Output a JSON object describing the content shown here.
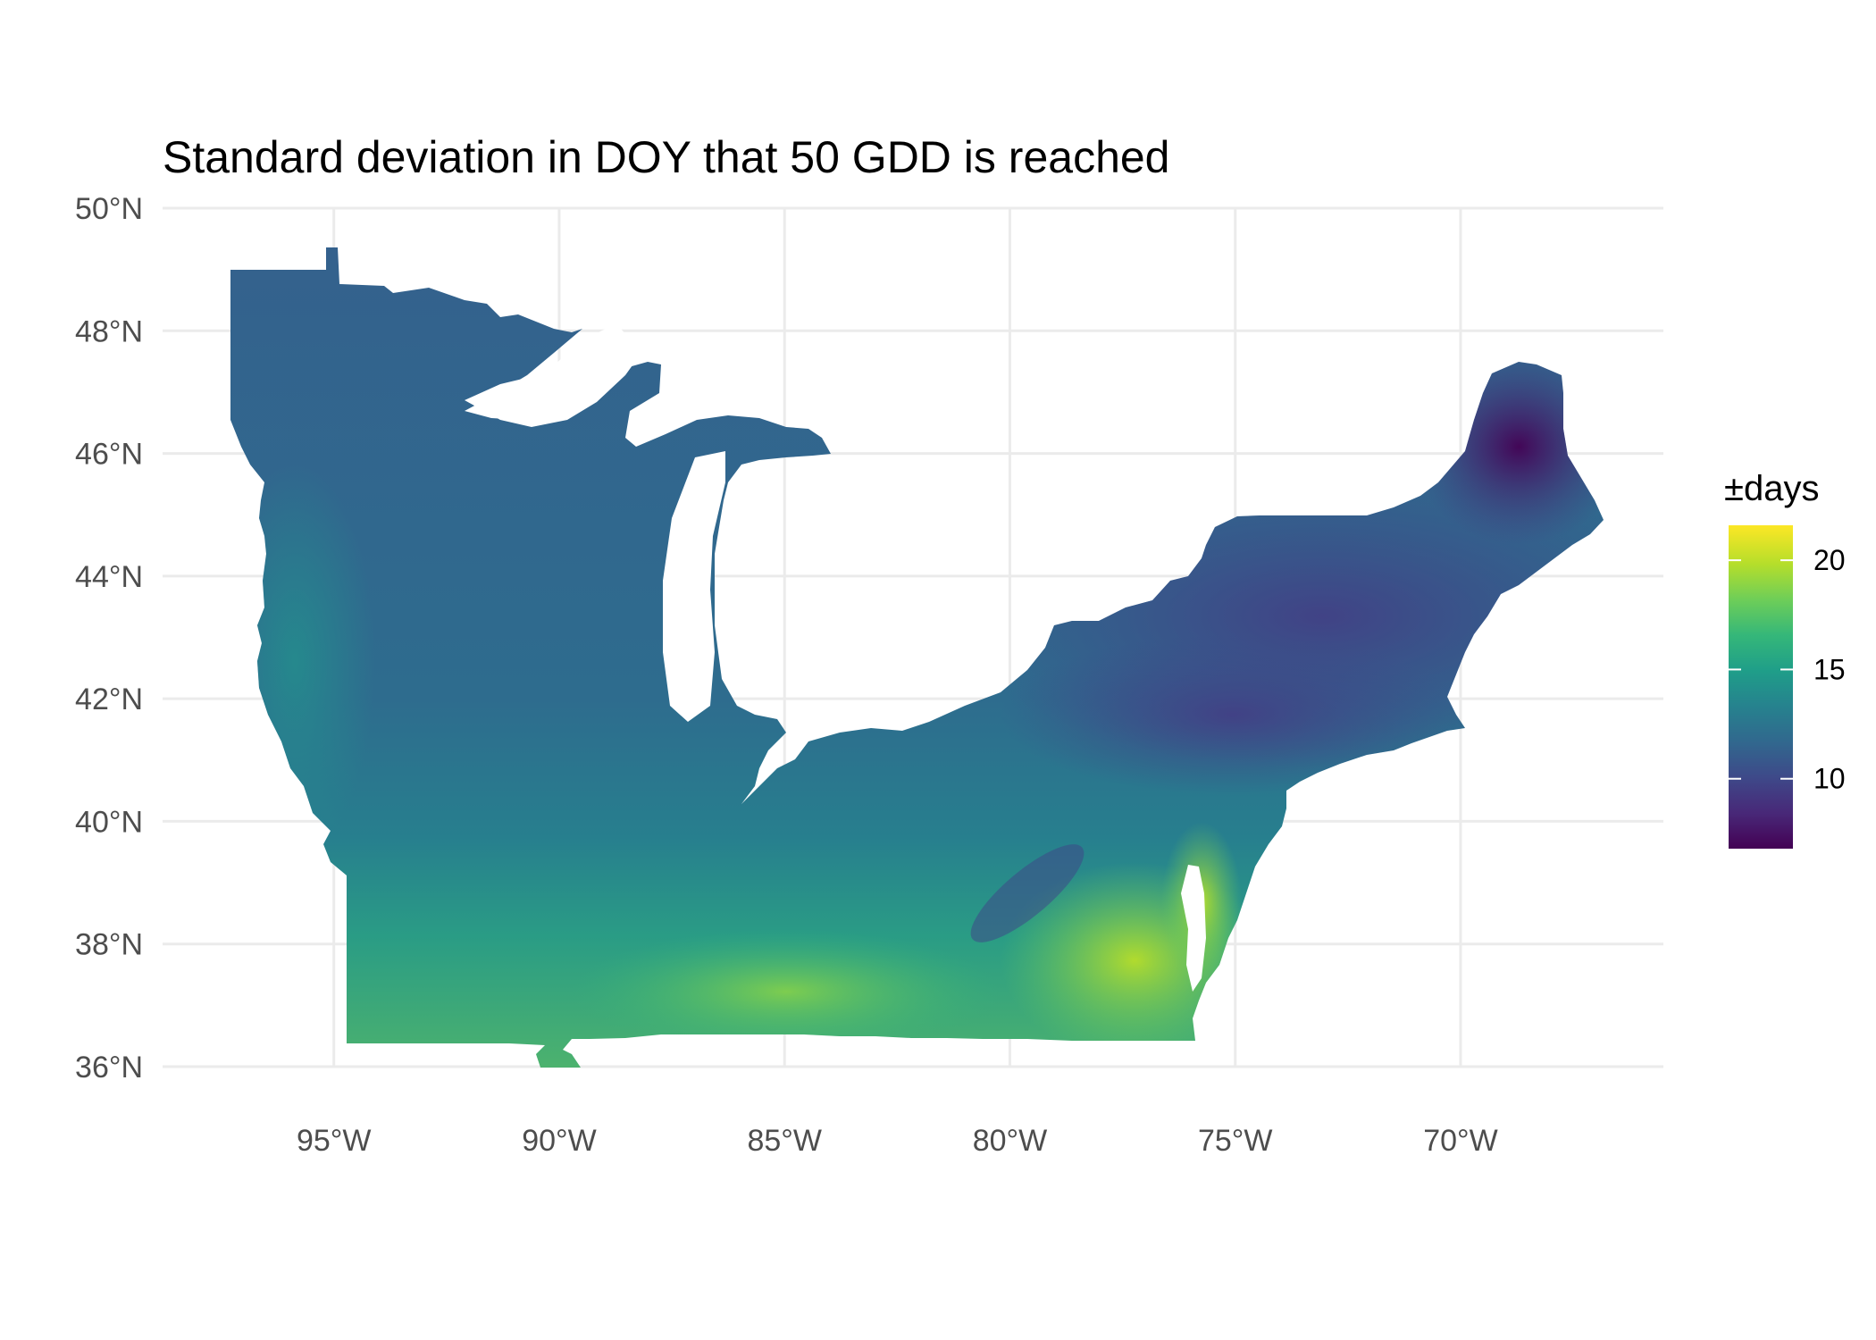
{
  "title": "Standard deviation in DOY that 50 GDD is reached",
  "x_axis": {
    "ticks": [
      "95°W",
      "90°W",
      "85°W",
      "80°W",
      "75°W",
      "70°W"
    ],
    "values": [
      -95,
      -90,
      -85,
      -80,
      -75,
      -70
    ],
    "range": [
      -98.8,
      -65.5
    ]
  },
  "y_axis": {
    "ticks": [
      "36°N",
      "38°N",
      "40°N",
      "42°N",
      "44°N",
      "46°N",
      "48°N",
      "50°N"
    ],
    "values": [
      36,
      38,
      40,
      42,
      44,
      46,
      48,
      50
    ]
  },
  "legend": {
    "title": "±days",
    "ticks": [
      "10",
      "15",
      "20"
    ],
    "values": [
      10,
      15,
      20
    ],
    "range": [
      6.8,
      21.6
    ],
    "colors": [
      "#440154",
      "#482878",
      "#3e4989",
      "#31688e",
      "#26828e",
      "#1f9e89",
      "#35b779",
      "#6ece58",
      "#b5de2b",
      "#fde725"
    ]
  },
  "colors": {
    "region_base": "#31688e",
    "north_low": "#3e4989",
    "maine_min": "#440154",
    "south_high": "#6ece58",
    "coastal_max": "#b5de2b",
    "grid": "#ebebeb"
  }
}
